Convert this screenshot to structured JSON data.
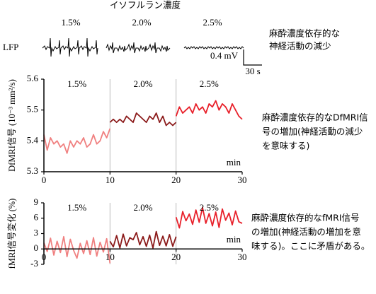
{
  "header": {
    "title": "イソフルラン濃度",
    "segment_labels": [
      "1.5%",
      "2.0%",
      "2.5%"
    ]
  },
  "lfp": {
    "label": "LFP",
    "scale_v": "0.4 mV",
    "scale_t": "30 s",
    "note": [
      "麻酔濃度依存的な",
      "神経活動の減少"
    ]
  },
  "chart_data": [
    {
      "type": "line",
      "ylabel": "DfMRI信号 (10⁻³ mm²/s)",
      "xlabel": "min",
      "xlim": [
        0,
        30
      ],
      "ylim": [
        5.3,
        5.6
      ],
      "xticks": [
        0,
        10,
        20,
        30
      ],
      "yticks": [
        5.3,
        5.4,
        5.5,
        5.6
      ],
      "segment_labels": [
        "1.5%",
        "2.0%",
        "2.5%"
      ],
      "note": [
        "麻酔濃度依存的なDfMRI信",
        "号の増加(神経活動の減少",
        "を意味する)"
      ],
      "series": [
        {
          "color": "#f08080",
          "x": [
            0,
            0.5,
            1,
            1.5,
            2,
            2.5,
            3,
            3.5,
            4,
            4.5,
            5,
            5.5,
            6,
            6.5,
            7,
            7.5,
            8,
            8.5,
            9,
            9.5,
            10
          ],
          "values": [
            5.42,
            5.37,
            5.41,
            5.39,
            5.4,
            5.38,
            5.39,
            5.36,
            5.4,
            5.38,
            5.4,
            5.39,
            5.41,
            5.38,
            5.39,
            5.42,
            5.39,
            5.4,
            5.43,
            5.41,
            5.44
          ]
        },
        {
          "color": "#8b1a1a",
          "x": [
            10,
            10.5,
            11,
            11.5,
            12,
            12.5,
            13,
            13.5,
            14,
            14.5,
            15,
            15.5,
            16,
            16.5,
            17,
            17.5,
            18,
            18.5,
            19,
            19.5,
            20
          ],
          "values": [
            5.46,
            5.47,
            5.46,
            5.47,
            5.46,
            5.48,
            5.47,
            5.46,
            5.49,
            5.48,
            5.47,
            5.46,
            5.48,
            5.47,
            5.49,
            5.46,
            5.48,
            5.45,
            5.46,
            5.45,
            5.46
          ]
        },
        {
          "color": "#e8202a",
          "x": [
            20,
            20.5,
            21,
            21.5,
            22,
            22.5,
            23,
            23.5,
            24,
            24.5,
            25,
            25.5,
            26,
            26.5,
            27,
            27.5,
            28,
            28.5,
            29,
            29.5,
            30
          ],
          "values": [
            5.48,
            5.51,
            5.49,
            5.5,
            5.51,
            5.49,
            5.52,
            5.5,
            5.51,
            5.49,
            5.52,
            5.51,
            5.53,
            5.5,
            5.52,
            5.51,
            5.49,
            5.52,
            5.5,
            5.48,
            5.47
          ]
        }
      ]
    },
    {
      "type": "line",
      "ylabel": "fMRI信号変化 (%)",
      "xlabel": "min",
      "xlim": [
        0,
        30
      ],
      "ylim": [
        -3,
        9
      ],
      "xticks": [
        0,
        10,
        20,
        30
      ],
      "yticks": [
        -3,
        0,
        3,
        6,
        9
      ],
      "segment_labels": [
        "1.5%",
        "2.0%",
        "2.5%"
      ],
      "note": [
        "麻酔濃度依存的なfMRI信号",
        "の増加(神経活動の増加を意",
        "味する)。ここに矛盾がある。"
      ],
      "series": [
        {
          "color": "#f08080",
          "x": [
            0,
            0.5,
            1,
            1.5,
            2,
            2.5,
            3,
            3.5,
            4,
            4.5,
            5,
            5.5,
            6,
            6.5,
            7,
            7.5,
            8,
            8.5,
            9,
            9.5,
            10
          ],
          "values": [
            1.2,
            -0.5,
            2.1,
            -1.2,
            1.5,
            -0.7,
            2.4,
            -1.5,
            1.9,
            -0.3,
            -1.8,
            1.1,
            -0.9,
            1.6,
            -1.1,
            2.2,
            -1.4,
            1.3,
            -0.6,
            2.0,
            -2.8
          ]
        },
        {
          "color": "#8b1a1a",
          "x": [
            10,
            10.5,
            11,
            11.5,
            12,
            12.5,
            13,
            13.5,
            14,
            14.5,
            15,
            15.5,
            16,
            16.5,
            17,
            17.5,
            18,
            18.5,
            19,
            19.5,
            20
          ],
          "values": [
            1.5,
            0.4,
            2.6,
            0.2,
            2.9,
            0.6,
            2.2,
            1.8,
            3.2,
            0.8,
            2.4,
            0.5,
            2.7,
            0.2,
            3.4,
            0.7,
            2.5,
            0.6,
            2.8,
            0.5,
            2.4
          ]
        },
        {
          "color": "#e8202a",
          "x": [
            20,
            20.5,
            21,
            21.5,
            22,
            22.5,
            23,
            23.5,
            24,
            24.5,
            25,
            25.5,
            26,
            26.5,
            27,
            27.5,
            28,
            28.5,
            29,
            29.5,
            30
          ],
          "values": [
            6.2,
            4.1,
            7.3,
            5.5,
            6.8,
            4.8,
            7.6,
            5.2,
            8.1,
            5.0,
            6.9,
            4.5,
            7.2,
            4.2,
            7.8,
            5.6,
            7.0,
            4.7,
            7.4,
            5.3,
            5.0
          ]
        }
      ]
    }
  ]
}
